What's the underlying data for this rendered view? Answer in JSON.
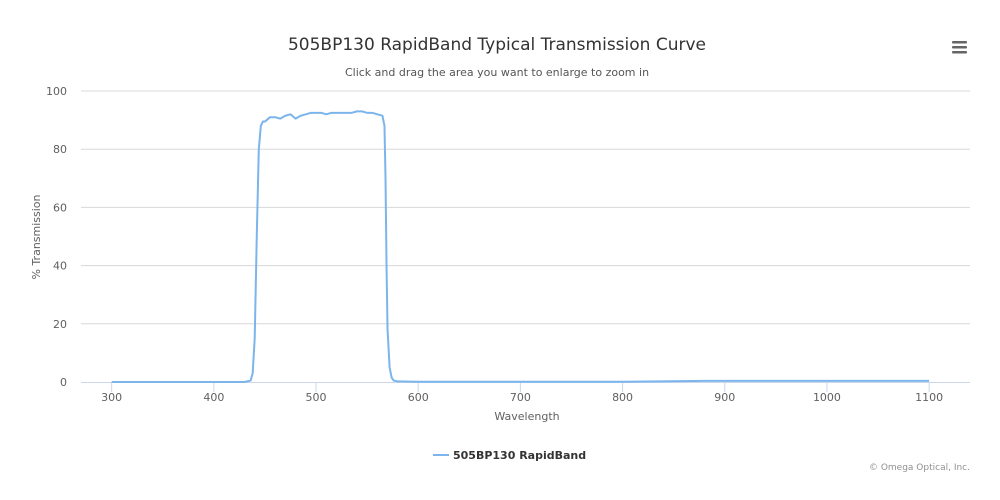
{
  "chart_data": {
    "type": "line",
    "title": "505BP130 RapidBand Typical Transmission Curve",
    "subtitle": "Click and drag the area you want to enlarge to zoom in",
    "xlabel": "Wavelength",
    "ylabel": "% Transmission",
    "xlim": [
      270,
      1140
    ],
    "ylim": [
      0,
      100
    ],
    "xticks": [
      300,
      400,
      500,
      600,
      700,
      800,
      900,
      1000,
      1100
    ],
    "yticks": [
      0,
      20,
      40,
      60,
      80,
      100
    ],
    "grid": true,
    "legend_position": "bottom-center",
    "series": [
      {
        "name": "505BP130 RapidBand",
        "color": "#7cb5ec",
        "x": [
          300,
          400,
          430,
          436,
          438,
          440,
          442,
          444,
          446,
          448,
          450,
          455,
          460,
          465,
          470,
          475,
          480,
          485,
          490,
          495,
          500,
          505,
          510,
          515,
          520,
          525,
          530,
          535,
          540,
          545,
          550,
          555,
          560,
          565,
          567,
          568,
          569,
          570,
          572,
          574,
          576,
          580,
          600,
          700,
          800,
          880,
          900,
          950,
          1000,
          1050,
          1100
        ],
        "y": [
          0,
          0,
          0,
          0.5,
          3,
          15,
          50,
          80,
          88,
          89.5,
          89.5,
          91,
          91,
          90.5,
          91.5,
          92,
          90.5,
          91.5,
          92,
          92.5,
          92.5,
          92.5,
          92,
          92.5,
          92.5,
          92.5,
          92.5,
          92.5,
          93,
          93,
          92.5,
          92.5,
          92,
          91.5,
          88,
          70,
          40,
          18,
          5,
          1.5,
          0.5,
          0.2,
          0.1,
          0.1,
          0.1,
          0.4,
          0.4,
          0.4,
          0.4,
          0.4,
          0.4
        ]
      }
    ]
  },
  "menu_icon": "hamburger-menu-icon",
  "credits": "© Omega Optical, Inc."
}
